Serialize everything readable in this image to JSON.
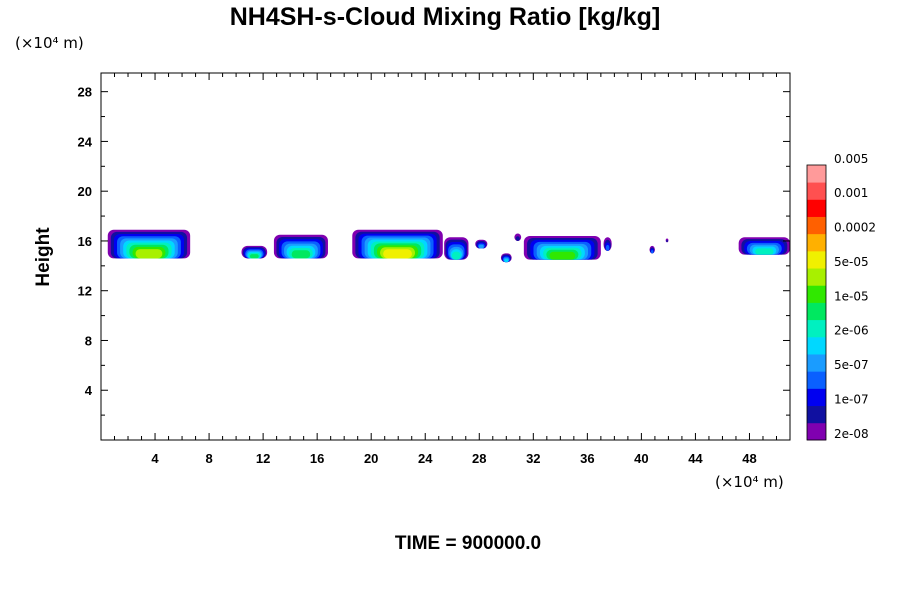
{
  "chart_data": {
    "type": "heatmap",
    "title": "NH4SH-s-Cloud Mixing Ratio [kg/kg]",
    "ylabel": "Height",
    "xlabel": "",
    "y_unit_label": "(×10⁴ m)",
    "x_unit_label": "(×10⁴ m)",
    "xlim": [
      0,
      51
    ],
    "ylim": [
      0,
      29.5
    ],
    "x_ticks": [
      4,
      8,
      12,
      16,
      20,
      24,
      28,
      32,
      36,
      40,
      44,
      48
    ],
    "y_ticks": [
      4,
      8,
      12,
      16,
      20,
      24,
      28
    ],
    "time_label": "TIME = 900000.0",
    "colorbar": {
      "colors": [
        "#8000b0",
        "#1010a0",
        "#0000f0",
        "#0a60ff",
        "#1a9cff",
        "#00d8ff",
        "#00f0c0",
        "#00e860",
        "#30e800",
        "#a8f000",
        "#f0f000",
        "#ffb000",
        "#ff6000",
        "#ff0000",
        "#ff5050",
        "#ff9a9a"
      ],
      "labels": [
        "2e-08",
        "1e-07",
        "5e-07",
        "2e-06",
        "1e-05",
        "5e-05",
        "0.0002",
        "0.001",
        "0.005"
      ]
    },
    "cloud_cells": [
      {
        "x0": 0.5,
        "x1": 6.6,
        "ybase": 14.6,
        "ytop": 16.9,
        "peak": 9
      },
      {
        "x0": 10.4,
        "x1": 12.3,
        "ybase": 14.6,
        "ytop": 15.6,
        "peak": 7
      },
      {
        "x0": 12.8,
        "x1": 16.8,
        "ybase": 14.6,
        "ytop": 16.5,
        "peak": 7
      },
      {
        "x0": 18.6,
        "x1": 25.3,
        "ybase": 14.6,
        "ytop": 16.9,
        "peak": 10
      },
      {
        "x0": 25.4,
        "x1": 27.2,
        "ybase": 14.5,
        "ytop": 16.3,
        "peak": 6
      },
      {
        "x0": 27.7,
        "x1": 28.6,
        "ybase": 15.4,
        "ytop": 16.1,
        "peak": 4
      },
      {
        "x0": 29.6,
        "x1": 30.4,
        "ybase": 14.3,
        "ytop": 15.0,
        "peak": 5
      },
      {
        "x0": 30.6,
        "x1": 31.1,
        "ybase": 16.0,
        "ytop": 16.6,
        "peak": 1
      },
      {
        "x0": 31.3,
        "x1": 37.0,
        "ybase": 14.5,
        "ytop": 16.4,
        "peak": 8
      },
      {
        "x0": 37.2,
        "x1": 37.8,
        "ybase": 15.2,
        "ytop": 16.3,
        "peak": 3
      },
      {
        "x0": 40.6,
        "x1": 41.0,
        "ybase": 15.0,
        "ytop": 15.6,
        "peak": 3
      },
      {
        "x0": 41.8,
        "x1": 42.0,
        "ybase": 15.9,
        "ytop": 16.2,
        "peak": 1
      },
      {
        "x0": 47.2,
        "x1": 51.0,
        "ybase": 14.9,
        "ytop": 16.3,
        "peak": 6
      }
    ]
  }
}
